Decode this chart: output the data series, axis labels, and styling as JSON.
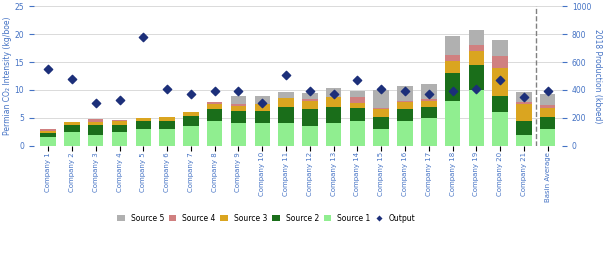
{
  "companies": [
    "Company 1",
    "Company 2",
    "Company 3",
    "Company 4",
    "Company 5",
    "Company 6",
    "Company 7",
    "Company 8",
    "Company 9",
    "Company 10",
    "Company 11",
    "Company 12",
    "Company 13",
    "Company 14",
    "Company 15",
    "Company 16",
    "Company 17",
    "Company 18",
    "Company 19",
    "Company 20",
    "Company 21",
    "Basin Average"
  ],
  "source1": [
    1.5,
    2.5,
    2.0,
    2.5,
    3.0,
    3.0,
    3.5,
    4.5,
    4.0,
    4.0,
    4.0,
    3.5,
    4.0,
    4.5,
    3.0,
    4.5,
    5.0,
    8.0,
    10.0,
    6.0,
    2.0,
    3.0
  ],
  "source2": [
    0.8,
    1.2,
    1.8,
    1.2,
    1.5,
    1.5,
    1.8,
    2.0,
    2.2,
    2.2,
    3.0,
    3.0,
    3.0,
    2.2,
    2.2,
    2.0,
    2.0,
    5.0,
    4.5,
    3.0,
    2.5,
    2.2
  ],
  "source3": [
    0.4,
    0.6,
    0.4,
    0.7,
    0.4,
    0.7,
    0.7,
    1.0,
    1.0,
    1.3,
    1.5,
    1.5,
    1.8,
    1.0,
    1.3,
    1.3,
    1.0,
    2.2,
    2.5,
    5.0,
    3.0,
    1.5
  ],
  "source4": [
    0.3,
    0.0,
    0.6,
    0.3,
    0.0,
    0.0,
    0.0,
    0.3,
    0.3,
    0.0,
    0.0,
    0.3,
    0.0,
    1.0,
    0.3,
    0.3,
    0.3,
    1.0,
    1.0,
    2.0,
    0.3,
    0.6
  ],
  "source5": [
    0.0,
    0.0,
    0.0,
    0.0,
    0.0,
    0.0,
    0.0,
    0.0,
    1.5,
    1.5,
    1.2,
    1.2,
    1.5,
    1.2,
    3.2,
    2.7,
    2.7,
    3.5,
    2.7,
    3.0,
    1.8,
    2.0
  ],
  "output_production": [
    550,
    480,
    310,
    330,
    780,
    410,
    370,
    390,
    390,
    310,
    510,
    390,
    370,
    470,
    410,
    390,
    370,
    390,
    410,
    470,
    350,
    390
  ],
  "color_source1": "#90EE90",
  "color_source2": "#1a6e1a",
  "color_source3": "#DAA520",
  "color_source4": "#d08080",
  "color_source5": "#b0b0b0",
  "color_output": "#1c2f7a",
  "ylabel_left": "Permian CO₂ Intensity (kg/boe)",
  "ylabel_right": "2018 Production (kboed)",
  "background_color": "#ffffff",
  "grid_color": "#cccccc",
  "ylim_left": [
    0,
    25
  ],
  "ylim_right": [
    0,
    1000
  ],
  "bar_width": 0.65
}
